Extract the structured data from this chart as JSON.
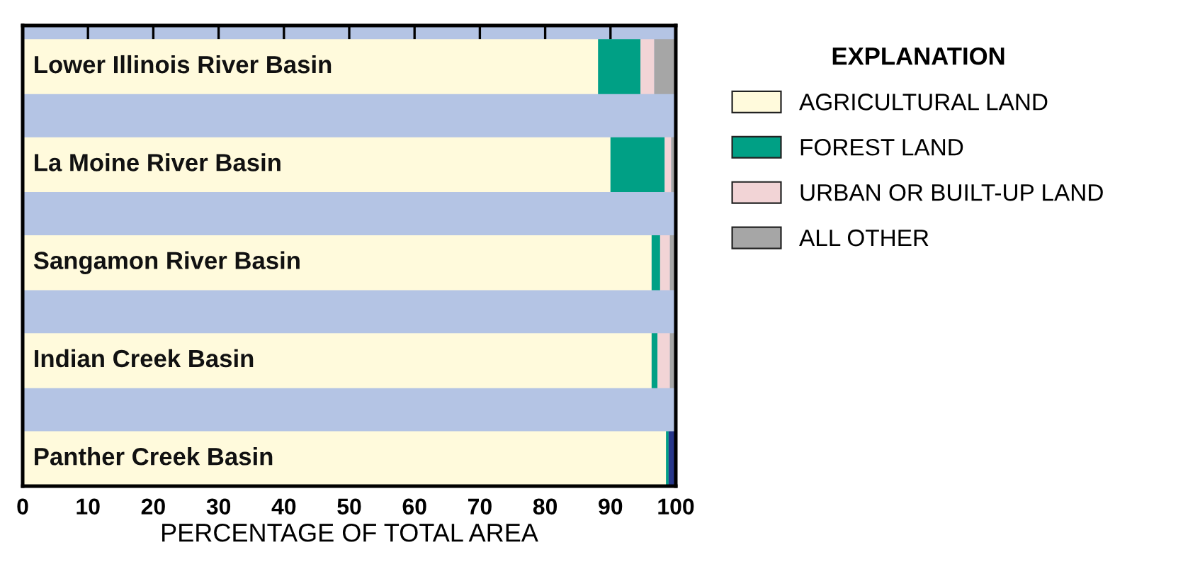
{
  "chart_data": {
    "type": "bar",
    "orientation": "horizontal",
    "stacked": true,
    "categories": [
      "Lower Illinois River Basin",
      "La Moine River Basin",
      "Sangamon River Basin",
      "Indian Creek Basin",
      "Panther Creek Basin"
    ],
    "series": [
      {
        "name": "AGRICULTURAL LAND",
        "color": "#fffadc",
        "values": [
          88.1,
          90.0,
          96.3,
          96.3,
          98.5
        ]
      },
      {
        "name": "FOREST LAND",
        "color": "#00a085",
        "values": [
          6.5,
          8.3,
          1.3,
          0.9,
          0.4
        ]
      },
      {
        "name": "URBAN OR BUILT-UP LAND",
        "color": "#f2d4d6",
        "values": [
          2.1,
          1.0,
          1.5,
          1.9,
          0
        ]
      },
      {
        "name": "ALL OTHER",
        "color": "#a6a6a6",
        "values": [
          3.3,
          0.7,
          0.9,
          0.9,
          0
        ]
      },
      {
        "color": "#27368a",
        "values": [
          0,
          0,
          0,
          0,
          1.1
        ]
      }
    ],
    "xlim": [
      0,
      100
    ],
    "xticks": [
      0,
      10,
      20,
      30,
      40,
      50,
      60,
      70,
      80,
      90,
      100
    ],
    "xlabel": "PERCENTAGE OF TOTAL AREA",
    "legend_title": "EXPLANATION",
    "legend": "right",
    "grid": false,
    "bands": [
      {
        "axis": "x",
        "from": 0,
        "to": 100,
        "color": "#b4c4e4"
      }
    ]
  }
}
